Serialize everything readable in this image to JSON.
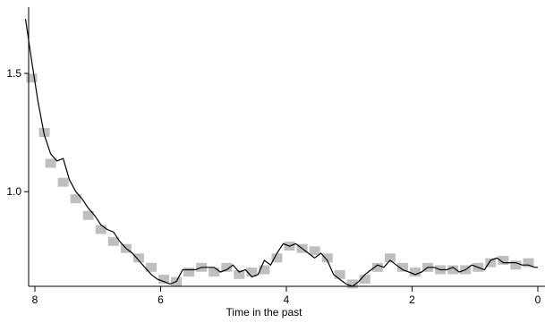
{
  "chart_data": {
    "type": "line",
    "title": "",
    "xlabel": "Time in the past",
    "ylabel": "",
    "xlim": [
      8.2,
      0
    ],
    "ylim": [
      0.6,
      1.78
    ],
    "x_reversed": true,
    "grid": false,
    "x_ticks": [
      {
        "value": 8,
        "label": "8"
      },
      {
        "value": 6,
        "label": "6"
      },
      {
        "value": 4,
        "label": "4"
      },
      {
        "value": 2,
        "label": "2"
      },
      {
        "value": 0,
        "label": "0"
      }
    ],
    "y_ticks": [
      {
        "value": 1.0,
        "label": "1.0"
      },
      {
        "value": 1.5,
        "label": "1.5"
      }
    ],
    "series": [
      {
        "color": "#000000",
        "x": [
          8.15,
          8.05,
          7.95,
          7.85,
          7.75,
          7.65,
          7.55,
          7.45,
          7.35,
          7.25,
          7.15,
          7.05,
          6.95,
          6.85,
          6.75,
          6.65,
          6.55,
          6.45,
          6.35,
          6.25,
          6.15,
          6.05,
          5.95,
          5.85,
          5.75,
          5.65,
          5.55,
          5.45,
          5.35,
          5.25,
          5.15,
          5.05,
          4.95,
          4.85,
          4.75,
          4.65,
          4.55,
          4.45,
          4.35,
          4.25,
          4.15,
          4.05,
          3.95,
          3.85,
          3.75,
          3.65,
          3.55,
          3.45,
          3.35,
          3.25,
          3.15,
          3.05,
          2.95,
          2.85,
          2.75,
          2.65,
          2.55,
          2.45,
          2.35,
          2.25,
          2.15,
          2.05,
          1.95,
          1.85,
          1.75,
          1.65,
          1.55,
          1.45,
          1.35,
          1.25,
          1.15,
          1.05,
          0.95,
          0.85,
          0.75,
          0.65,
          0.55,
          0.45,
          0.35,
          0.25,
          0.15,
          0.05,
          0.0
        ],
        "values": [
          1.73,
          1.55,
          1.38,
          1.24,
          1.16,
          1.13,
          1.14,
          1.05,
          1.0,
          0.97,
          0.93,
          0.9,
          0.86,
          0.84,
          0.83,
          0.79,
          0.76,
          0.74,
          0.71,
          0.68,
          0.65,
          0.63,
          0.62,
          0.61,
          0.62,
          0.67,
          0.67,
          0.67,
          0.68,
          0.68,
          0.68,
          0.66,
          0.67,
          0.69,
          0.66,
          0.67,
          0.64,
          0.65,
          0.71,
          0.69,
          0.74,
          0.78,
          0.77,
          0.78,
          0.76,
          0.74,
          0.72,
          0.74,
          0.71,
          0.65,
          0.63,
          0.61,
          0.6,
          0.62,
          0.65,
          0.67,
          0.69,
          0.68,
          0.71,
          0.69,
          0.67,
          0.66,
          0.65,
          0.66,
          0.68,
          0.68,
          0.67,
          0.67,
          0.68,
          0.66,
          0.67,
          0.69,
          0.68,
          0.67,
          0.71,
          0.72,
          0.7,
          0.7,
          0.7,
          0.69,
          0.69,
          0.68,
          0.68
        ]
      },
      {
        "color": "#bfbfbf",
        "style": "bars",
        "x": [
          8.05,
          7.85,
          7.75,
          7.55,
          7.35,
          7.15,
          6.95,
          6.75,
          6.55,
          6.35,
          6.15,
          5.95,
          5.75,
          5.55,
          5.35,
          5.15,
          4.95,
          4.75,
          4.55,
          4.35,
          4.15,
          3.95,
          3.75,
          3.55,
          3.35,
          3.15,
          2.95,
          2.75,
          2.55,
          2.35,
          2.15,
          1.95,
          1.75,
          1.55,
          1.35,
          1.15,
          0.95,
          0.75,
          0.55,
          0.35,
          0.15
        ],
        "values": [
          1.48,
          1.25,
          1.12,
          1.04,
          0.97,
          0.9,
          0.84,
          0.79,
          0.76,
          0.72,
          0.68,
          0.63,
          0.62,
          0.66,
          0.68,
          0.66,
          0.68,
          0.65,
          0.66,
          0.67,
          0.72,
          0.77,
          0.76,
          0.75,
          0.72,
          0.65,
          0.61,
          0.63,
          0.68,
          0.72,
          0.68,
          0.66,
          0.68,
          0.67,
          0.67,
          0.67,
          0.68,
          0.7,
          0.71,
          0.69,
          0.7
        ]
      }
    ]
  }
}
